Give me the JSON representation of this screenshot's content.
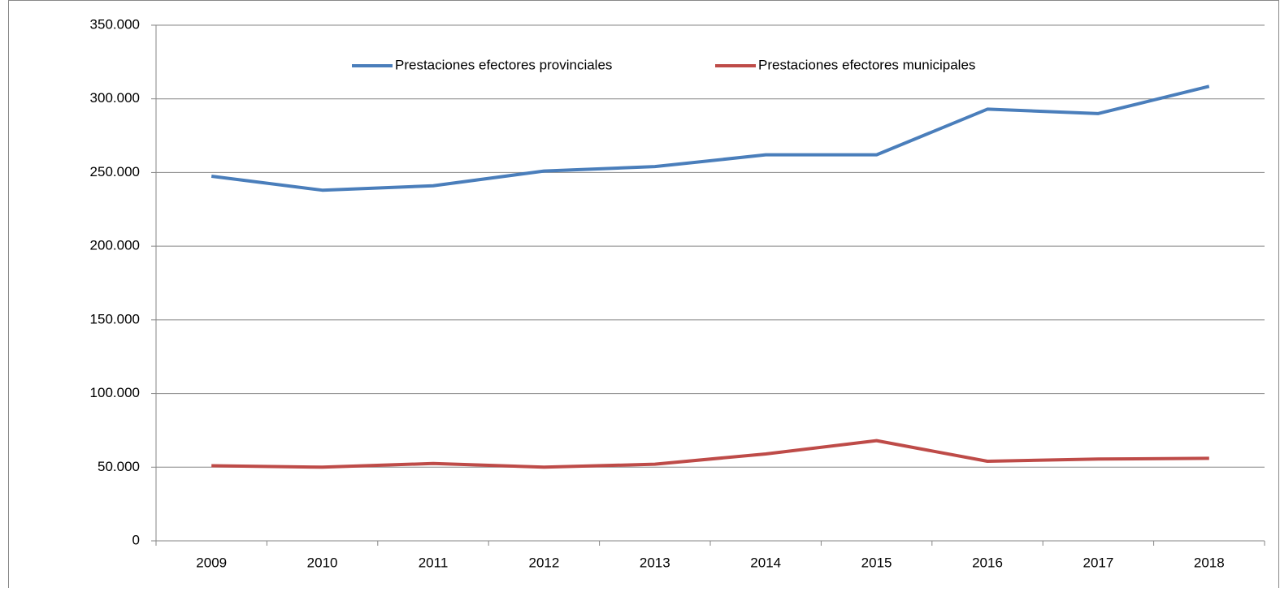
{
  "chart_data": {
    "type": "line",
    "categories": [
      "2009",
      "2010",
      "2011",
      "2012",
      "2013",
      "2014",
      "2015",
      "2016",
      "2017",
      "2018"
    ],
    "series": [
      {
        "name": "Prestaciones efectores provinciales",
        "color": "#4a7ebb",
        "values": [
          247500,
          238000,
          241000,
          251000,
          254000,
          262000,
          262000,
          293000,
          290000,
          308500
        ]
      },
      {
        "name": "Prestaciones efectores municipales",
        "color": "#be4b48",
        "values": [
          51000,
          50000,
          52500,
          50000,
          52000,
          59000,
          68000,
          54000,
          55500,
          56000
        ]
      }
    ],
    "ylim": [
      0,
      350000
    ],
    "yticks": [
      0,
      {
        "value": 50000,
        "label": "50.000"
      },
      {
        "value": 100000,
        "label": "100.000"
      },
      {
        "value": 150000,
        "label": "150.000"
      },
      {
        "value": 200000,
        "label": "200.000"
      },
      {
        "value": 250000,
        "label": "250.000"
      },
      {
        "value": 300000,
        "label": "300.000"
      },
      {
        "value": 350000,
        "label": "350.000"
      }
    ],
    "grid": true,
    "legend": "top"
  }
}
